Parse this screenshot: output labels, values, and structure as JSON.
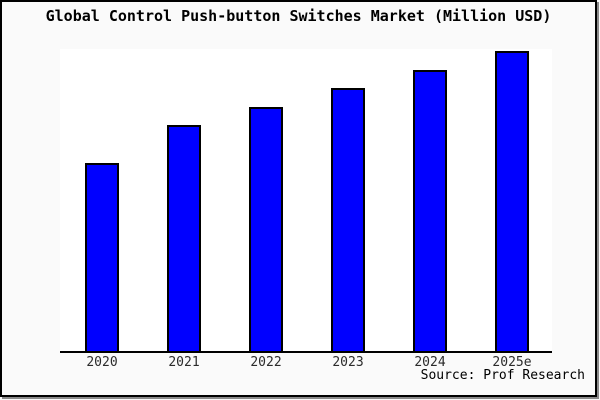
{
  "chart_data": {
    "type": "bar",
    "title": "Global Control Push-button Switches Market (Million USD)",
    "categories": [
      "2020",
      "2021",
      "2022",
      "2023",
      "2024",
      "2025e"
    ],
    "values": [
      62.8,
      75.2,
      81.5,
      87.7,
      93.7,
      100
    ],
    "value_note": "no numeric y-axis shown; values are relative percent of tallest (2025e) bar estimated from bar heights",
    "ylim": [
      0,
      100
    ],
    "xlabel": "",
    "ylabel": "",
    "grid": false,
    "legend": false,
    "y_axis_visible": false,
    "colors": {
      "bar_fill": "#0000ff",
      "bar_border": "#000000",
      "plot_bg": "#ffffff",
      "page_bg": "#fafafa",
      "frame_border": "#000000",
      "frame_shadow": "#8a8a8a"
    }
  },
  "footer": {
    "source_label": "Source: Prof Research"
  }
}
